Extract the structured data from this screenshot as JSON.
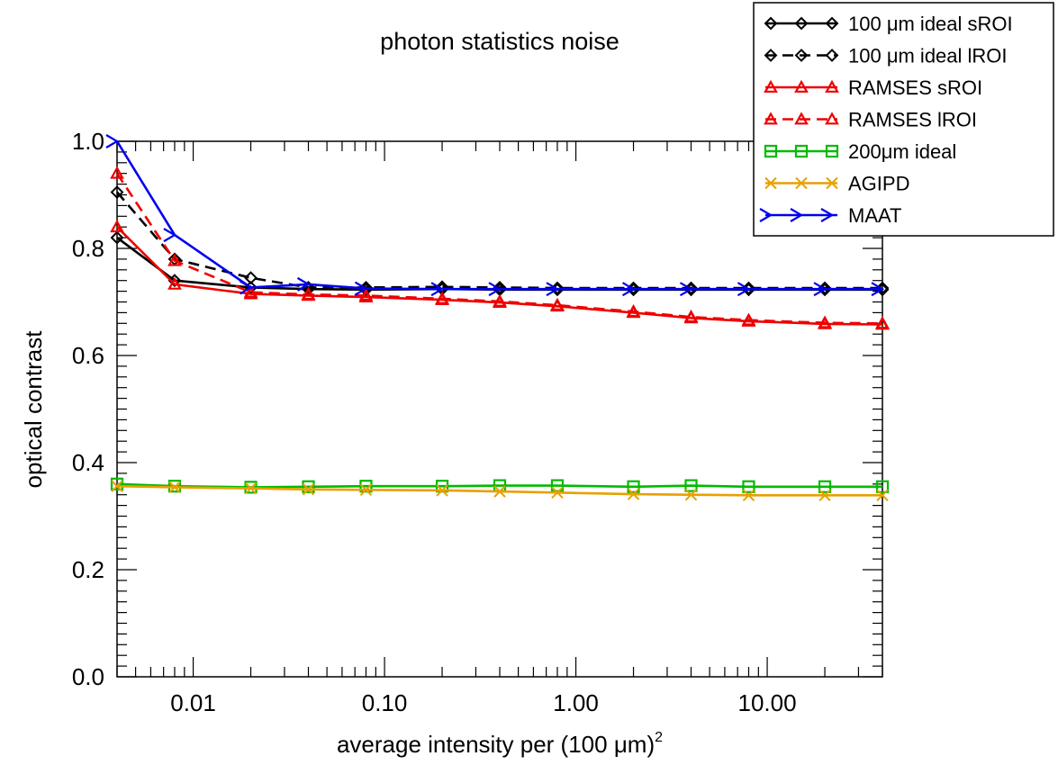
{
  "chart_data": {
    "type": "line",
    "title": "photon statistics noise",
    "xlabel": "average intensity per (100 μm)",
    "xlabel_superscript": "2",
    "ylabel": "optical contrast",
    "x_scale": "log",
    "xlim": [
      0.004,
      40
    ],
    "ylim": [
      0.0,
      1.0
    ],
    "x_ticks": [
      0.01,
      0.1,
      1,
      10
    ],
    "x_tick_labels": [
      "0.01",
      "0.10",
      "1.00",
      "10.00"
    ],
    "y_ticks": [
      0.0,
      0.2,
      0.4,
      0.6,
      0.8,
      1.0
    ],
    "y_tick_labels": [
      "0.0",
      "0.2",
      "0.4",
      "0.6",
      "0.8",
      "1.0"
    ],
    "legend_position": "top-right",
    "series": [
      {
        "name": "100 μm ideal sROI",
        "color": "#000000",
        "dash": "solid",
        "marker": "diamond",
        "x": [
          0.004,
          0.008,
          0.02,
          0.04,
          0.08,
          0.2,
          0.4,
          0.8,
          2,
          4,
          8,
          20,
          40
        ],
        "values": [
          0.82,
          0.74,
          0.727,
          0.724,
          0.723,
          0.724,
          0.723,
          0.723,
          0.723,
          0.723,
          0.723,
          0.723,
          0.723
        ]
      },
      {
        "name": "100 μm ideal lROI",
        "color": "#000000",
        "dash": "dashed",
        "marker": "diamond",
        "x": [
          0.004,
          0.008,
          0.02,
          0.04,
          0.08,
          0.2,
          0.4,
          0.8,
          2,
          4,
          8,
          20,
          40
        ],
        "values": [
          0.905,
          0.78,
          0.745,
          0.727,
          0.727,
          0.728,
          0.727,
          0.726,
          0.726,
          0.726,
          0.726,
          0.726,
          0.726
        ]
      },
      {
        "name": "RAMSES sROI",
        "color": "#ee0000",
        "dash": "solid",
        "marker": "triangle",
        "x": [
          0.004,
          0.008,
          0.02,
          0.04,
          0.08,
          0.2,
          0.4,
          0.8,
          2,
          4,
          8,
          20,
          40
        ],
        "values": [
          0.84,
          0.733,
          0.715,
          0.712,
          0.709,
          0.704,
          0.699,
          0.692,
          0.68,
          0.67,
          0.664,
          0.659,
          0.658
        ]
      },
      {
        "name": "RAMSES lROI",
        "color": "#ee0000",
        "dash": "dashed",
        "marker": "triangle",
        "x": [
          0.004,
          0.008,
          0.02,
          0.04,
          0.08,
          0.2,
          0.4,
          0.8,
          2,
          4,
          8,
          20,
          40
        ],
        "values": [
          0.94,
          0.777,
          0.718,
          0.714,
          0.712,
          0.706,
          0.701,
          0.694,
          0.682,
          0.672,
          0.666,
          0.661,
          0.66
        ]
      },
      {
        "name": "200μm ideal",
        "color": "#00bb00",
        "dash": "solid",
        "marker": "square",
        "x": [
          0.004,
          0.008,
          0.02,
          0.04,
          0.08,
          0.2,
          0.4,
          0.8,
          2,
          4,
          8,
          20,
          40
        ],
        "values": [
          0.36,
          0.356,
          0.354,
          0.355,
          0.356,
          0.356,
          0.357,
          0.357,
          0.355,
          0.357,
          0.355,
          0.355,
          0.355
        ]
      },
      {
        "name": "AGIPD",
        "color": "#e8a000",
        "dash": "solid",
        "marker": "cross",
        "x": [
          0.004,
          0.008,
          0.02,
          0.04,
          0.08,
          0.2,
          0.4,
          0.8,
          2,
          4,
          8,
          20,
          40
        ],
        "values": [
          0.356,
          0.354,
          0.352,
          0.35,
          0.349,
          0.348,
          0.346,
          0.344,
          0.341,
          0.34,
          0.339,
          0.339,
          0.339
        ]
      },
      {
        "name": "MAAT",
        "color": "#0000ee",
        "dash": "solid",
        "marker": "arrow",
        "x": [
          0.004,
          0.008,
          0.02,
          0.04,
          0.08,
          0.2,
          0.4,
          0.8,
          2,
          4,
          8,
          20,
          40
        ],
        "values": [
          1.0,
          0.825,
          0.727,
          0.733,
          0.725,
          0.724,
          0.724,
          0.724,
          0.724,
          0.724,
          0.724,
          0.724,
          0.724
        ]
      }
    ]
  }
}
